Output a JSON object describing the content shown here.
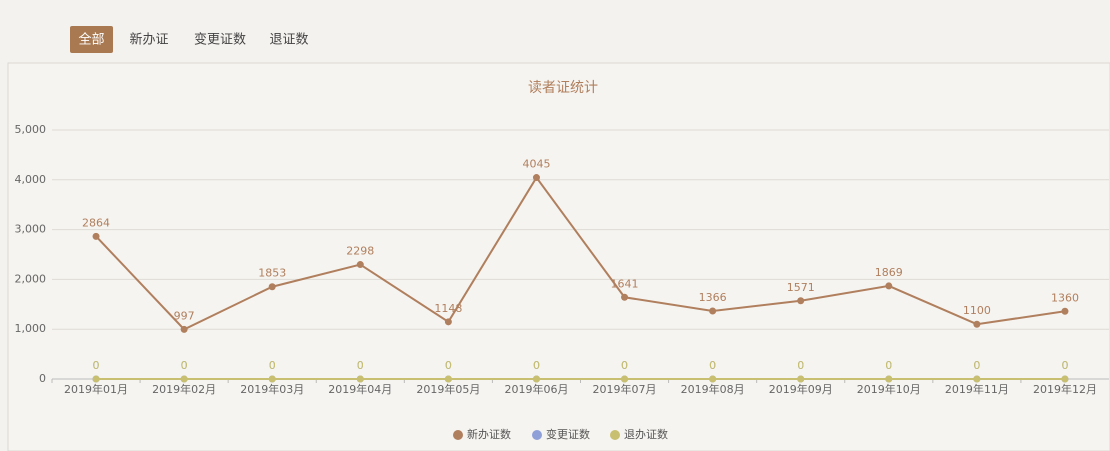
{
  "tabs": [
    "全部",
    "新办证",
    "变更证数",
    "退证数"
  ],
  "active_tab": 0,
  "chart_data": {
    "type": "line",
    "title": "读者证统计",
    "categories": [
      "2019年01月",
      "2019年02月",
      "2019年03月",
      "2019年04月",
      "2019年05月",
      "2019年06月",
      "2019年07月",
      "2019年08月",
      "2019年09月",
      "2019年10月",
      "2019年11月",
      "2019年12月"
    ],
    "series": [
      {
        "name": "新办证数",
        "color": "#b07f5e",
        "values": [
          2864,
          997,
          1853,
          2298,
          1148,
          4045,
          1641,
          1366,
          1571,
          1869,
          1100,
          1360
        ]
      },
      {
        "name": "变更证数",
        "color": "#8fa0d8",
        "values": [
          0,
          0,
          0,
          0,
          0,
          0,
          0,
          0,
          0,
          0,
          0,
          0
        ]
      },
      {
        "name": "退办证数",
        "color": "#c8c070",
        "values": [
          0,
          0,
          0,
          0,
          0,
          0,
          0,
          0,
          0,
          0,
          0,
          0
        ]
      }
    ],
    "ylim": [
      0,
      5000
    ],
    "yticks": [
      0,
      {
        "value": 1000,
        "label": "1,000"
      },
      {
        "value": 2000,
        "label": "2,000"
      },
      {
        "value": 3000,
        "label": "3,000"
      },
      {
        "value": 4000,
        "label": "4,000"
      },
      {
        "value": 5000,
        "label": "5,000"
      }
    ],
    "grid": true,
    "legend": "bottom"
  }
}
